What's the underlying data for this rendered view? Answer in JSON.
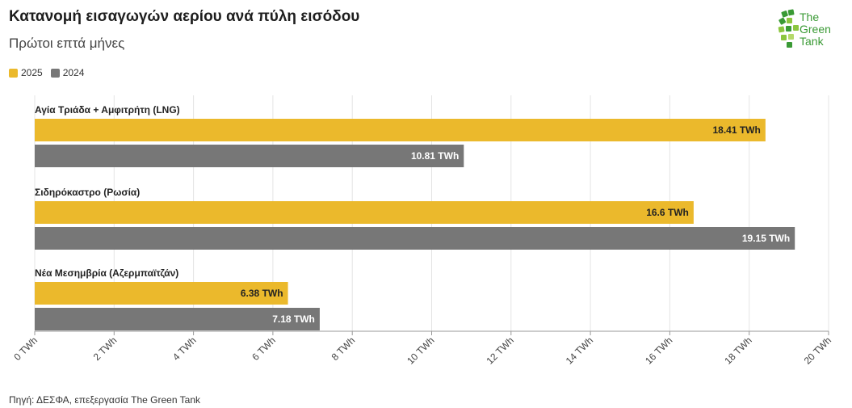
{
  "header": {
    "title": "Κατανομή εισαγωγών αερίου ανά πύλη εισόδου",
    "subtitle": "Πρώτοι επτά μήνες"
  },
  "logo": {
    "line1": "The",
    "line2": "Green",
    "line3": "Tank"
  },
  "footer": {
    "source": "Πηγή: ΔΕΣΦΑ, επεξεργασία The Green Tank"
  },
  "colors": {
    "series_2025": "#EBB92C",
    "series_2024": "#777777",
    "logo_green": "#3a9a35"
  },
  "chart_data": {
    "type": "bar",
    "orientation": "horizontal",
    "categories": [
      "Αγία Τριάδα + Αμφιτρήτη (LNG)",
      "Σιδηρόκαστρο (Ρωσία)",
      "Νέα Μεσημβρία (Αζερμπαϊτζάν)"
    ],
    "series": [
      {
        "name": "2025",
        "values": [
          18.41,
          16.6,
          6.38
        ],
        "labels": [
          "18.41 TWh",
          "16.6 TWh",
          "6.38 TWh"
        ]
      },
      {
        "name": "2024",
        "values": [
          10.81,
          19.15,
          7.18
        ],
        "labels": [
          "10.81 TWh",
          "19.15 TWh",
          "7.18 TWh"
        ]
      }
    ],
    "xlim": [
      0,
      20
    ],
    "xticks": [
      "0 TWh",
      "2 TWh",
      "4 TWh",
      "6 TWh",
      "8 TWh",
      "10 TWh",
      "12 TWh",
      "14 TWh",
      "16 TWh",
      "18 TWh",
      "20 TWh"
    ],
    "grid": true,
    "legend": "top-left"
  }
}
